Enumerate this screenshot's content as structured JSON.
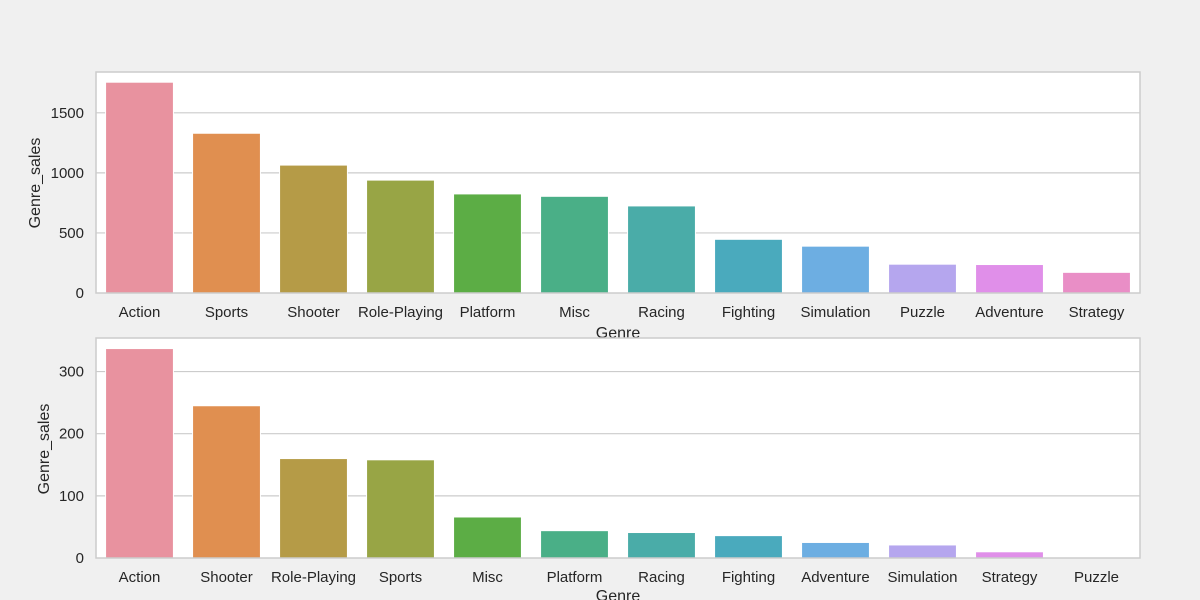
{
  "colors": {
    "figure_background": "#f0f0f0",
    "axes_background": "#ffffff",
    "grid": "#cccccc",
    "spine": "#cccccc",
    "text": "#262626",
    "palette": [
      "#e8929f",
      "#e08f50",
      "#b59b47",
      "#98a545",
      "#5cad45",
      "#4aaf87",
      "#4aaca8",
      "#4aaabd",
      "#6daee2",
      "#b5a6ee",
      "#e08fe9",
      "#e98ec6"
    ]
  },
  "chart_data": [
    {
      "type": "bar",
      "categories": [
        "Action",
        "Sports",
        "Shooter",
        "Role-Playing",
        "Platform",
        "Misc",
        "Racing",
        "Fighting",
        "Simulation",
        "Puzzle",
        "Adventure",
        "Strategy"
      ],
      "values": [
        1755,
        1330,
        1065,
        940,
        825,
        805,
        725,
        447,
        390,
        240,
        237,
        172
      ],
      "xlabel": "Genre",
      "ylabel": "Genre_sales",
      "ylim": [
        0,
        1840
      ],
      "yticks": [
        0,
        500,
        1000,
        1500
      ],
      "grid": true,
      "grid_axis": "y"
    },
    {
      "type": "bar",
      "categories": [
        "Action",
        "Shooter",
        "Role-Playing",
        "Sports",
        "Misc",
        "Platform",
        "Racing",
        "Fighting",
        "Adventure",
        "Simulation",
        "Strategy",
        "Puzzle"
      ],
      "values": [
        337,
        245,
        160,
        158,
        66,
        44,
        41,
        36,
        25,
        21,
        10,
        1
      ],
      "xlabel": "Genre",
      "ylabel": "Genre_sales",
      "ylim": [
        0,
        354
      ],
      "yticks": [
        0,
        100,
        200,
        300
      ],
      "grid": true,
      "grid_axis": "y"
    }
  ]
}
